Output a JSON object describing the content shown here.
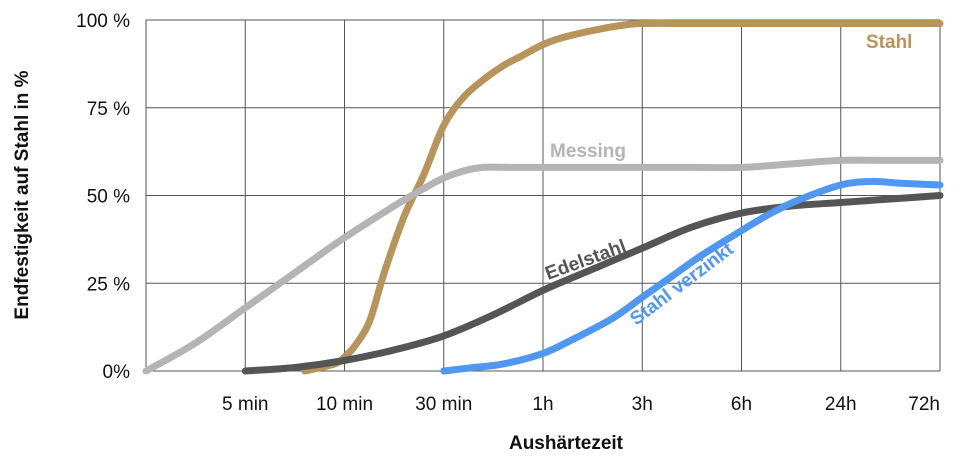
{
  "chart_data": {
    "type": "line",
    "xlabel": "Aushärtezeit",
    "ylabel": "Endfestigkeit auf Stahl in %",
    "categories": [
      "",
      "5 min",
      "10 min",
      "30 min",
      "1h",
      "3h",
      "6h",
      "24h",
      "72h"
    ],
    "y_tick_labels": [
      "0%",
      "25 %",
      "50 %",
      "75 %",
      "100 %"
    ],
    "y_ticks": [
      0,
      25,
      50,
      75,
      100
    ],
    "ylim": [
      0,
      100
    ],
    "grid": true,
    "series": [
      {
        "name": "Stahl",
        "color": "#b8935a",
        "x": [
          1.6,
          1.9,
          2.0,
          2.1,
          2.25,
          2.4,
          2.6,
          2.8,
          3.0,
          3.2,
          3.4,
          3.6,
          3.8,
          4.0,
          4.2,
          4.5,
          4.8,
          5.0,
          5.5,
          6.0,
          7.0,
          8.0
        ],
        "values": [
          0,
          2,
          4,
          7,
          14,
          28,
          44,
          56,
          70,
          78,
          83,
          87,
          90,
          93,
          95,
          97,
          98.5,
          99,
          99,
          99,
          99,
          99
        ]
      },
      {
        "name": "Messing",
        "color": "#b4b4b4",
        "x": [
          0,
          0.5,
          1.0,
          1.5,
          2.0,
          2.5,
          2.8,
          3.0,
          3.2,
          3.4,
          3.7,
          4.0,
          5.0,
          5.5,
          6.0,
          6.5,
          7.0,
          7.5,
          8.0
        ],
        "values": [
          0,
          8,
          18,
          28,
          38,
          47,
          52,
          55,
          57,
          58,
          58,
          58,
          58,
          58,
          58,
          59,
          60,
          60,
          60
        ]
      },
      {
        "name": "Edelstahl",
        "color": "#555555",
        "x": [
          1.0,
          1.5,
          2.0,
          2.5,
          3.0,
          3.5,
          4.0,
          4.5,
          5.0,
          5.5,
          6.0,
          6.5,
          7.0,
          7.5,
          8.0
        ],
        "values": [
          0,
          1,
          3,
          6,
          10,
          16,
          23,
          29,
          35,
          41,
          45,
          47,
          48,
          49,
          50
        ]
      },
      {
        "name": "Stahl verzinkt",
        "color": "#4f97f0",
        "x": [
          3.0,
          3.3,
          3.6,
          4.0,
          4.3,
          4.7,
          5.0,
          5.3,
          5.6,
          6.0,
          6.3,
          6.6,
          7.0,
          7.3,
          7.6,
          8.0
        ],
        "values": [
          0,
          1,
          2,
          5,
          9,
          15,
          21,
          27,
          33,
          40,
          45,
          49,
          53,
          54,
          53.5,
          53
        ]
      }
    ]
  }
}
